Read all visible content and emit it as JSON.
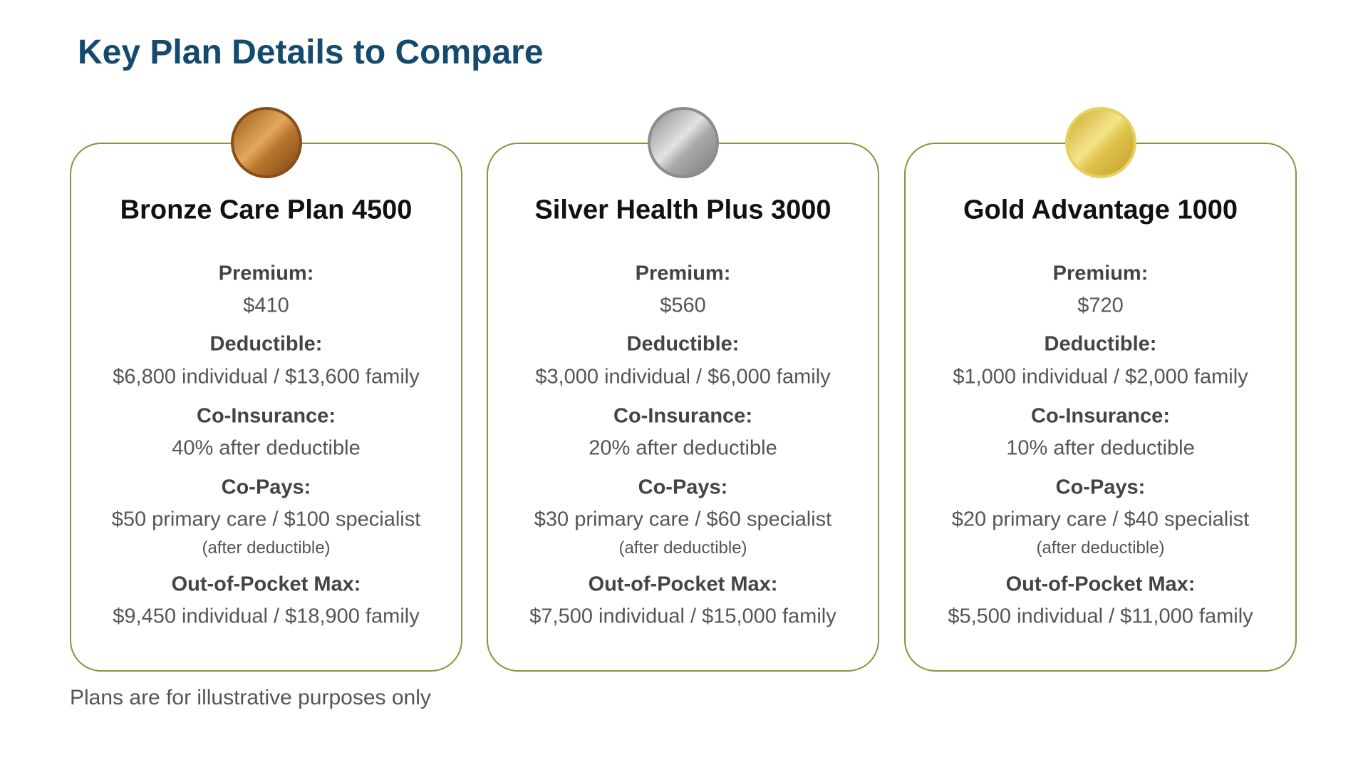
{
  "header": {
    "title": "Key Plan Details to Compare"
  },
  "cards": [
    {
      "name": "Bronze Care Plan 4500",
      "rows": [
        {
          "label": "Premium:",
          "value": "$410"
        },
        {
          "label": "Deductible:",
          "value": "$6,800 individual / $13,600 family"
        },
        {
          "label": "Co-Insurance:",
          "value": "40% after deductible"
        },
        {
          "label": "Co-Pays:",
          "value": "$50 primary care / $100 specialist",
          "note": "(after deductible)"
        },
        {
          "label": "Out-of-Pocket Max:",
          "value": "$9,450 individual / $18,900 family"
        }
      ]
    },
    {
      "name": "Silver Health Plus 3000",
      "rows": [
        {
          "label": "Premium:",
          "value": "$560"
        },
        {
          "label": "Deductible:",
          "value": "$3,000 individual / $6,000 family"
        },
        {
          "label": "Co-Insurance:",
          "value": "20% after deductible"
        },
        {
          "label": "Co-Pays:",
          "value": "$30 primary care / $60 specialist",
          "note": "(after deductible)"
        },
        {
          "label": "Out-of-Pocket Max:",
          "value": "$7,500 individual / $15,000 family"
        }
      ]
    },
    {
      "name": "Gold Advantage 1000",
      "rows": [
        {
          "label": "Premium:",
          "value": "$720"
        },
        {
          "label": "Deductible:",
          "value": "$1,000 individual / $2,000 family"
        },
        {
          "label": "Co-Insurance:",
          "value": "10% after deductible"
        },
        {
          "label": "Co-Pays:",
          "value": "$20 primary care / $40 specialist",
          "note": "(after deductible)"
        },
        {
          "label": "Out-of-Pocket Max:",
          "value": "$5,500 individual / $11,000 family"
        }
      ]
    }
  ],
  "footnote": "Plans are for illustrative purposes only"
}
